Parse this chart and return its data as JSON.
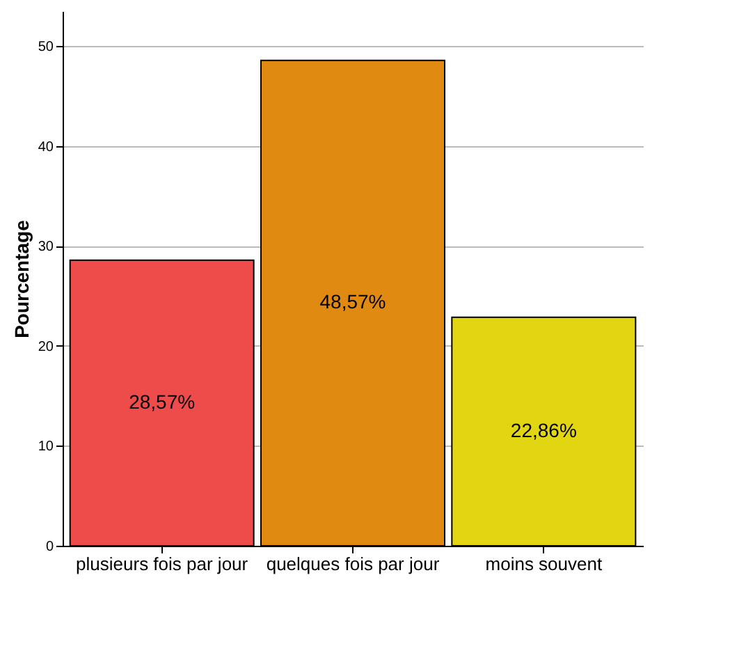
{
  "chart_data": {
    "type": "bar",
    "ylabel": "Pourcentage",
    "categories": [
      "plusieurs fois par jour",
      "quelques fois par jour",
      "moins souvent"
    ],
    "values": [
      28.57,
      48.57,
      22.86
    ],
    "colors": [
      "#ee4b4b",
      "#e08a12",
      "#e2d512"
    ],
    "value_labels": [
      "28,57%",
      "48,57%",
      "22,86%"
    ],
    "ylim": [
      0,
      53.5
    ],
    "yticks": [
      0,
      10,
      20,
      30,
      40,
      50
    ],
    "grid": "y"
  }
}
